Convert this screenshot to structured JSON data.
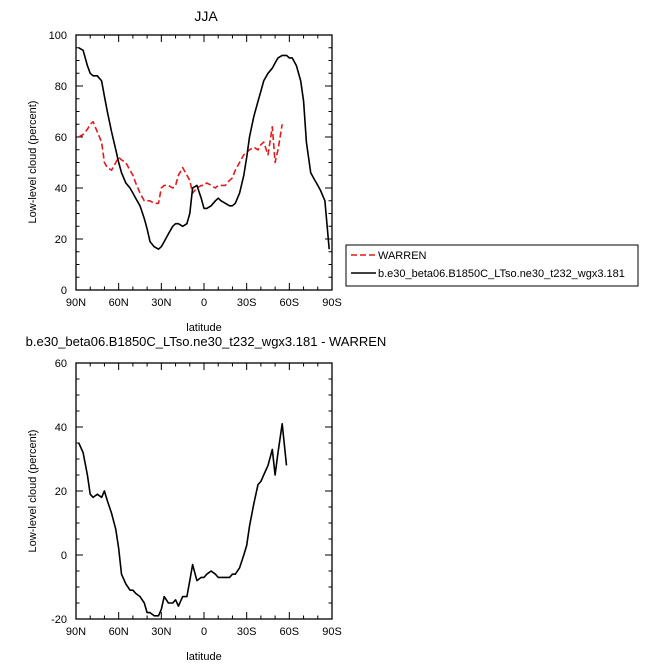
{
  "chart_data": [
    {
      "type": "line",
      "title": "JJA",
      "xlabel": "latitude",
      "ylabel": "Low-level cloud (percent)",
      "xlim": [
        90,
        -90
      ],
      "ylim": [
        0,
        100
      ],
      "x_ticks": [
        {
          "value": 90,
          "label": "90N"
        },
        {
          "value": 60,
          "label": "60N"
        },
        {
          "value": 30,
          "label": "30N"
        },
        {
          "value": 0,
          "label": "0"
        },
        {
          "value": -30,
          "label": "30S"
        },
        {
          "value": -60,
          "label": "60S"
        },
        {
          "value": -90,
          "label": "90S"
        }
      ],
      "y_ticks": [
        0,
        20,
        40,
        60,
        80,
        100
      ],
      "legend_position": "right",
      "series": [
        {
          "name": "WARREN",
          "color": "#e41a1c",
          "dash": "dashed",
          "x": [
            88,
            85,
            82,
            80,
            78,
            75,
            72,
            70,
            68,
            65,
            62,
            60,
            58,
            55,
            52,
            50,
            48,
            45,
            42,
            40,
            38,
            35,
            32,
            30,
            28,
            25,
            22,
            20,
            18,
            15,
            12,
            10,
            8,
            5,
            2,
            0,
            -2,
            -5,
            -8,
            -10,
            -12,
            -15,
            -18,
            -20,
            -22,
            -25,
            -28,
            -30,
            -32,
            -35,
            -38,
            -40,
            -42,
            -45,
            -48,
            -50,
            -52,
            -55,
            -58,
            -60
          ],
          "y": [
            60,
            61,
            63,
            65,
            66,
            62,
            58,
            50,
            48,
            47,
            50,
            52,
            51,
            50,
            47,
            45,
            42,
            38,
            35,
            35,
            35,
            34,
            34,
            40,
            41,
            41,
            40,
            41,
            45,
            48,
            45,
            43,
            38,
            40,
            41,
            41,
            42,
            41,
            40,
            41,
            41,
            41,
            43,
            44,
            47,
            50,
            53,
            54,
            55,
            56,
            55,
            57,
            58,
            53,
            64,
            50,
            55,
            65,
            null,
            null
          ]
        },
        {
          "name": "b.e30_beta06.B1850C_LTso.ne30_t232_wgx3.181",
          "color": "#000000",
          "dash": "solid",
          "x": [
            88,
            85,
            82,
            80,
            78,
            75,
            72,
            70,
            68,
            65,
            62,
            60,
            58,
            55,
            52,
            50,
            48,
            45,
            42,
            40,
            38,
            35,
            32,
            30,
            28,
            25,
            22,
            20,
            18,
            15,
            12,
            10,
            8,
            5,
            2,
            0,
            -2,
            -5,
            -8,
            -10,
            -12,
            -15,
            -18,
            -20,
            -22,
            -25,
            -28,
            -30,
            -32,
            -35,
            -38,
            -40,
            -42,
            -45,
            -48,
            -50,
            -52,
            -55,
            -58,
            -60,
            -62,
            -65,
            -68,
            -70,
            -72,
            -75,
            -78,
            -80,
            -82,
            -85,
            -88
          ],
          "y": [
            95,
            94,
            88,
            85,
            84,
            84,
            82,
            76,
            70,
            62,
            55,
            50,
            46,
            42,
            40,
            38,
            36,
            33,
            28,
            24,
            19,
            17,
            16,
            17,
            19,
            22,
            25,
            26,
            26,
            25,
            26,
            30,
            40,
            41,
            36,
            32,
            32,
            33,
            35,
            36,
            35,
            34,
            33,
            33,
            34,
            38,
            45,
            52,
            60,
            68,
            74,
            78,
            82,
            85,
            87,
            89,
            91,
            92,
            92,
            91,
            91,
            88,
            82,
            74,
            58,
            46,
            43,
            41,
            39,
            35,
            16
          ]
        }
      ]
    },
    {
      "type": "line",
      "title": "b.e30_beta06.B1850C_LTso.ne30_t232_wgx3.181 - WARREN",
      "xlabel": "latitude",
      "ylabel": "Low-level cloud (percent)",
      "xlim": [
        90,
        -90
      ],
      "ylim": [
        -20,
        60
      ],
      "x_ticks": [
        {
          "value": 90,
          "label": "90N"
        },
        {
          "value": 60,
          "label": "60N"
        },
        {
          "value": 30,
          "label": "30N"
        },
        {
          "value": 0,
          "label": "0"
        },
        {
          "value": -30,
          "label": "30S"
        },
        {
          "value": -60,
          "label": "60S"
        },
        {
          "value": -90,
          "label": "90S"
        }
      ],
      "y_ticks": [
        -20,
        0,
        20,
        40,
        60
      ],
      "series": [
        {
          "name": "",
          "color": "#000000",
          "dash": "solid",
          "x": [
            88,
            85,
            82,
            80,
            78,
            75,
            72,
            70,
            68,
            65,
            62,
            60,
            58,
            55,
            52,
            50,
            48,
            45,
            42,
            40,
            38,
            35,
            32,
            30,
            28,
            25,
            22,
            20,
            18,
            15,
            12,
            10,
            8,
            5,
            2,
            0,
            -2,
            -5,
            -8,
            -10,
            -12,
            -15,
            -18,
            -20,
            -22,
            -25,
            -28,
            -30,
            -32,
            -35,
            -38,
            -40,
            -42,
            -45,
            -48,
            -50,
            -52,
            -55,
            -58
          ],
          "y": [
            35,
            32,
            25,
            19,
            18,
            19,
            18,
            20,
            17,
            13,
            8,
            2,
            -6,
            -9,
            -11,
            -11,
            -12,
            -13,
            -15,
            -18,
            -18,
            -19,
            -19,
            -17,
            -13,
            -15,
            -15,
            -14,
            -16,
            -13,
            -13,
            -8,
            -3,
            -8,
            -7,
            -7,
            -6,
            -5,
            -6,
            -7,
            -7,
            -7,
            -7,
            -6,
            -6,
            -4,
            0,
            3,
            9,
            16,
            22,
            23,
            25,
            28,
            33,
            25,
            32,
            41,
            28
          ]
        }
      ]
    }
  ]
}
